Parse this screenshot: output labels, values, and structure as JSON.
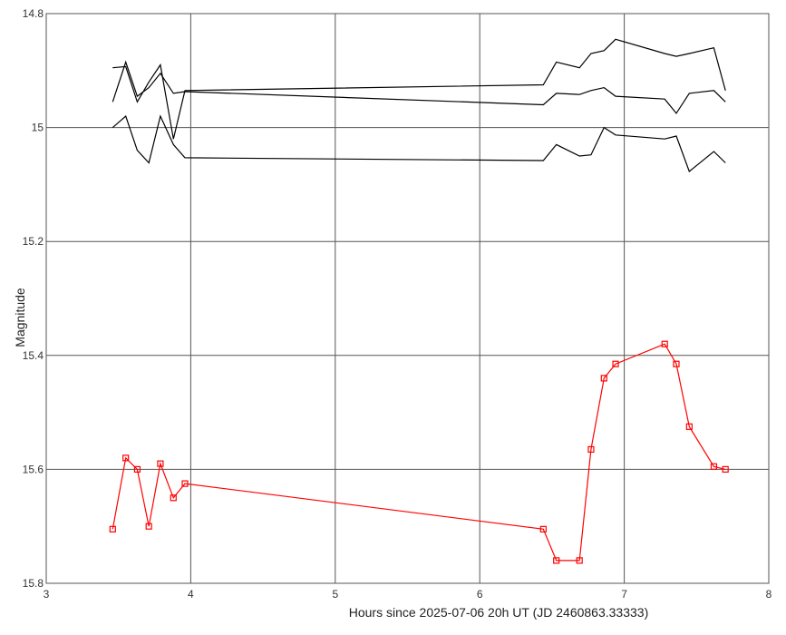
{
  "chart_data": {
    "type": "line",
    "xlabel": "Hours since 2025-07-06 20h UT (JD 2460863.33333)",
    "ylabel": "Magnitude",
    "xlim": [
      3,
      8
    ],
    "ylim": [
      14.8,
      15.8
    ],
    "y_inverted": true,
    "grid": true,
    "x_ticks": [
      "3",
      "4",
      "5",
      "6",
      "7",
      "8"
    ],
    "y_ticks": [
      "14.8",
      "15",
      "15.2",
      "15.4",
      "15.6",
      "15.8"
    ],
    "colors": {
      "target": "#ff0000",
      "comparison": "#000000",
      "grid": "#555555"
    },
    "series": [
      {
        "color": "#ff0000",
        "markers": "open-square",
        "x": [
          3.46,
          3.55,
          3.63,
          3.71,
          3.79,
          3.88,
          3.96,
          6.44,
          6.53,
          6.69,
          6.77,
          6.86,
          6.94,
          7.28,
          7.36,
          7.45,
          7.62,
          7.7
        ],
        "y": [
          15.705,
          15.58,
          15.6,
          15.7,
          15.59,
          15.65,
          15.625,
          15.705,
          15.76,
          15.76,
          15.565,
          15.44,
          15.415,
          15.38,
          15.415,
          15.525,
          15.595,
          15.6
        ]
      },
      {
        "color": "#000000",
        "markers": "none",
        "x": [
          3.46,
          3.55,
          3.63,
          3.71,
          3.79,
          3.88,
          3.96,
          6.44,
          6.53,
          6.69,
          6.77,
          6.86,
          6.94,
          7.28,
          7.36,
          7.45,
          7.62,
          7.7
        ],
        "y": [
          14.895,
          14.893,
          14.955,
          14.92,
          14.89,
          15.02,
          14.935,
          14.925,
          14.885,
          14.895,
          14.87,
          14.865,
          14.845,
          14.87,
          14.875,
          14.87,
          14.86,
          14.935
        ]
      },
      {
        "color": "#000000",
        "markers": "none",
        "x": [
          3.46,
          3.55,
          3.63,
          3.71,
          3.79,
          3.88,
          3.96,
          6.44,
          6.53,
          6.69,
          6.77,
          6.86,
          6.94,
          7.28,
          7.36,
          7.45,
          7.62,
          7.7
        ],
        "y": [
          14.955,
          14.885,
          14.945,
          14.93,
          14.905,
          14.94,
          14.937,
          14.96,
          14.94,
          14.942,
          14.935,
          14.93,
          14.945,
          14.95,
          14.975,
          14.94,
          14.935,
          14.955
        ]
      },
      {
        "color": "#000000",
        "markers": "none",
        "x": [
          3.46,
          3.55,
          3.63,
          3.71,
          3.79,
          3.88,
          3.96,
          6.44,
          6.53,
          6.69,
          6.77,
          6.86,
          6.94,
          7.28,
          7.36,
          7.45,
          7.62,
          7.7
        ],
        "y": [
          15.0,
          14.98,
          15.04,
          15.062,
          14.98,
          15.03,
          15.053,
          15.058,
          15.03,
          15.05,
          15.048,
          15.0,
          15.013,
          15.02,
          15.015,
          15.077,
          15.042,
          15.062
        ]
      }
    ]
  }
}
